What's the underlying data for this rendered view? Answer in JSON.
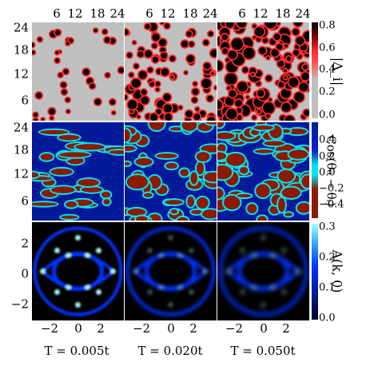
{
  "top_axis_ticks": [
    "6",
    "12",
    "18",
    "24"
  ],
  "left_axis_ticks_maps": [
    "24",
    "18",
    "12",
    "6"
  ],
  "left_axis_ticks_spectral": [
    "2",
    "0",
    "−2"
  ],
  "bottom_axis_ticks": [
    "−2",
    "0",
    "2"
  ],
  "columns": [
    {
      "label": "T = 0.005t"
    },
    {
      "label": "T = 0.020t"
    },
    {
      "label": "T = 0.050t"
    }
  ],
  "rows": [
    {
      "name": "gap-magnitude",
      "colorbar_label": "|Δ_i|",
      "colorbar_ticks": [
        "0.8",
        "0.6",
        "0.4",
        "0.2",
        "0.0"
      ],
      "colors": [
        "#c0c0c0",
        "#ff2a2a",
        "#000000"
      ]
    },
    {
      "name": "phase-correlation",
      "colorbar_label": "Cos(θ₀ − θᵢ)",
      "colorbar_ticks": [
        "0.4",
        "0.2",
        "0.0",
        "−0.2",
        "−0.4"
      ],
      "colors": [
        "#8b1a00",
        "#00e5ee",
        "#001a99"
      ]
    },
    {
      "name": "spectral-function",
      "colorbar_label": "A(k, 0)",
      "colorbar_ticks": [
        "0.3",
        "0.2",
        "0.1",
        "0.0"
      ],
      "colors": [
        "#000000",
        "#0033ff",
        "#aaffff"
      ]
    }
  ]
}
